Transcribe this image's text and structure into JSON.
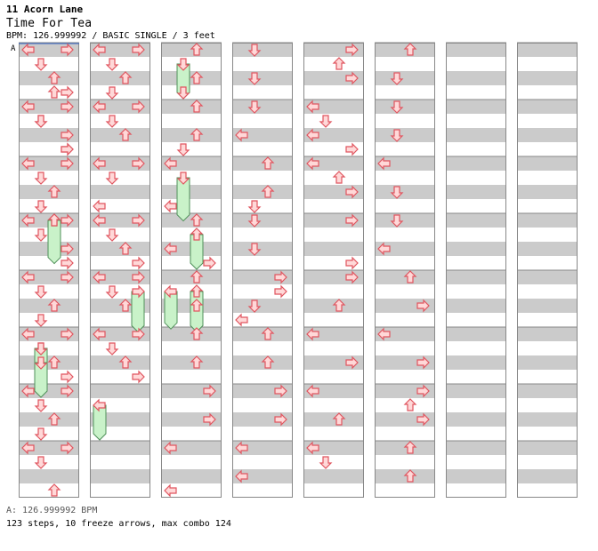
{
  "header": {
    "artist": "11 Acorn Lane",
    "title": "Time For Tea",
    "info": "BPM: 126.999992 / BASIC SINGLE / 3 feet",
    "bpm_marker": "A"
  },
  "footer": {
    "bpm_line": "A: 126.999992 BPM",
    "stats": "123 steps, 10 freeze arrows, max combo 124"
  },
  "colors": {
    "stripe_gray": "#cbcbcb",
    "arrow_fill": "#ffd8d8",
    "arrow_stroke": "#e0555f",
    "freeze_fill": "#c9f2c9",
    "freeze_stroke": "#50905a",
    "border": "#888888",
    "marker_line": "#3366cc"
  },
  "chart": {
    "columns": 8,
    "measures_per_column": 8,
    "steps": [
      {
        "m": 0,
        "r": 0,
        "d": "L"
      },
      {
        "m": 0,
        "r": 0,
        "d": "R"
      },
      {
        "m": 0,
        "r": 1,
        "d": "D"
      },
      {
        "m": 0,
        "r": 2,
        "d": "U"
      },
      {
        "m": 0,
        "r": 3,
        "d": "U"
      },
      {
        "m": 0,
        "r": 3,
        "d": "R"
      },
      {
        "m": 0,
        "r": 5,
        "d": "D"
      },
      {
        "m": 0,
        "r": 6,
        "d": "R"
      },
      {
        "m": 0,
        "r": 7,
        "d": "R"
      },
      {
        "m": 1,
        "r": 0,
        "d": "L"
      },
      {
        "m": 1,
        "r": 0,
        "d": "R"
      },
      {
        "m": 1,
        "r": 1,
        "d": "D"
      },
      {
        "m": 1,
        "r": 3,
        "d": "R"
      },
      {
        "m": 2,
        "r": 0,
        "d": "L"
      },
      {
        "m": 2,
        "r": 0,
        "d": "R"
      },
      {
        "m": 2,
        "r": 1,
        "d": "D"
      },
      {
        "m": 2,
        "r": 2,
        "d": "U"
      },
      {
        "m": 2,
        "r": 3,
        "d": "D"
      },
      {
        "m": 2,
        "r": 4,
        "d": "U"
      },
      {
        "m": 2,
        "r": 5,
        "d": "D"
      },
      {
        "m": 2,
        "r": 6,
        "d": "R"
      },
      {
        "m": 3,
        "r": 0,
        "d": "L"
      },
      {
        "m": 3,
        "r": 0,
        "d": "R"
      },
      {
        "m": 3,
        "r": 3,
        "d": "R"
      },
      {
        "m": 4,
        "r": 0,
        "d": "L"
      },
      {
        "m": 4,
        "r": 0,
        "d": "R"
      },
      {
        "m": 4,
        "r": 1,
        "d": "D"
      },
      {
        "m": 4,
        "r": 2,
        "d": "U"
      },
      {
        "m": 4,
        "r": 3,
        "d": "D"
      },
      {
        "m": 5,
        "r": 0,
        "d": "L"
      },
      {
        "m": 5,
        "r": 0,
        "d": "R"
      },
      {
        "m": 5,
        "r": 1,
        "d": "D"
      },
      {
        "m": 5,
        "r": 2,
        "d": "U"
      },
      {
        "m": 5,
        "r": 3,
        "d": "R"
      },
      {
        "m": 6,
        "r": 0,
        "d": "L"
      },
      {
        "m": 6,
        "r": 0,
        "d": "R"
      },
      {
        "m": 6,
        "r": 1,
        "d": "D"
      },
      {
        "m": 6,
        "r": 2,
        "d": "U"
      },
      {
        "m": 6,
        "r": 3,
        "d": "D"
      },
      {
        "m": 7,
        "r": 0,
        "d": "L"
      },
      {
        "m": 7,
        "r": 0,
        "d": "R"
      },
      {
        "m": 7,
        "r": 1,
        "d": "D"
      },
      {
        "m": 7,
        "r": 3,
        "d": "U"
      },
      {
        "m": 8,
        "r": 0,
        "d": "L"
      },
      {
        "m": 8,
        "r": 0,
        "d": "R"
      },
      {
        "m": 8,
        "r": 1,
        "d": "D"
      },
      {
        "m": 8,
        "r": 2,
        "d": "U"
      },
      {
        "m": 8,
        "r": 3,
        "d": "D"
      },
      {
        "m": 9,
        "r": 0,
        "d": "L"
      },
      {
        "m": 9,
        "r": 0,
        "d": "R"
      },
      {
        "m": 9,
        "r": 1,
        "d": "D"
      },
      {
        "m": 9,
        "r": 2,
        "d": "U"
      },
      {
        "m": 10,
        "r": 0,
        "d": "L"
      },
      {
        "m": 10,
        "r": 0,
        "d": "R"
      },
      {
        "m": 10,
        "r": 1,
        "d": "D"
      },
      {
        "m": 10,
        "r": 3,
        "d": "L"
      },
      {
        "m": 11,
        "r": 0,
        "d": "L"
      },
      {
        "m": 11,
        "r": 0,
        "d": "R"
      },
      {
        "m": 11,
        "r": 1,
        "d": "D"
      },
      {
        "m": 11,
        "r": 2,
        "d": "U"
      },
      {
        "m": 11,
        "r": 3,
        "d": "R"
      },
      {
        "m": 12,
        "r": 0,
        "d": "L"
      },
      {
        "m": 12,
        "r": 0,
        "d": "R"
      },
      {
        "m": 12,
        "r": 1,
        "d": "D"
      },
      {
        "m": 12,
        "r": 2,
        "d": "U"
      },
      {
        "m": 13,
        "r": 0,
        "d": "L"
      },
      {
        "m": 13,
        "r": 0,
        "d": "R"
      },
      {
        "m": 13,
        "r": 1,
        "d": "D"
      },
      {
        "m": 13,
        "r": 2,
        "d": "U"
      },
      {
        "m": 13,
        "r": 3,
        "d": "R"
      },
      {
        "m": 16,
        "r": 0,
        "d": "U"
      },
      {
        "m": 16,
        "r": 2,
        "d": "U"
      },
      {
        "m": 16,
        "r": 3,
        "d": "D"
      },
      {
        "m": 17,
        "r": 0,
        "d": "U"
      },
      {
        "m": 17,
        "r": 2,
        "d": "U"
      },
      {
        "m": 17,
        "r": 3,
        "d": "D"
      },
      {
        "m": 18,
        "r": 0,
        "d": "L"
      },
      {
        "m": 18,
        "r": 3,
        "d": "L"
      },
      {
        "m": 19,
        "r": 0,
        "d": "U"
      },
      {
        "m": 19,
        "r": 2,
        "d": "L"
      },
      {
        "m": 19,
        "r": 3,
        "d": "R"
      },
      {
        "m": 20,
        "r": 0,
        "d": "U"
      },
      {
        "m": 20,
        "r": 2,
        "d": "U"
      },
      {
        "m": 21,
        "r": 0,
        "d": "U"
      },
      {
        "m": 21,
        "r": 2,
        "d": "U"
      },
      {
        "m": 22,
        "r": 0,
        "d": "R"
      },
      {
        "m": 22,
        "r": 2,
        "d": "R"
      },
      {
        "m": 23,
        "r": 0,
        "d": "L"
      },
      {
        "m": 23,
        "r": 3,
        "d": "L"
      },
      {
        "m": 24,
        "r": 0,
        "d": "D"
      },
      {
        "m": 24,
        "r": 2,
        "d": "D"
      },
      {
        "m": 25,
        "r": 0,
        "d": "D"
      },
      {
        "m": 25,
        "r": 2,
        "d": "L"
      },
      {
        "m": 26,
        "r": 0,
        "d": "U"
      },
      {
        "m": 26,
        "r": 2,
        "d": "U"
      },
      {
        "m": 26,
        "r": 3,
        "d": "D"
      },
      {
        "m": 27,
        "r": 0,
        "d": "D"
      },
      {
        "m": 27,
        "r": 2,
        "d": "D"
      },
      {
        "m": 28,
        "r": 0,
        "d": "R"
      },
      {
        "m": 28,
        "r": 1,
        "d": "R"
      },
      {
        "m": 28,
        "r": 2,
        "d": "D"
      },
      {
        "m": 28,
        "r": 3,
        "d": "L"
      },
      {
        "m": 29,
        "r": 0,
        "d": "U"
      },
      {
        "m": 29,
        "r": 2,
        "d": "U"
      },
      {
        "m": 30,
        "r": 0,
        "d": "R"
      },
      {
        "m": 30,
        "r": 2,
        "d": "R"
      },
      {
        "m": 31,
        "r": 0,
        "d": "L"
      },
      {
        "m": 31,
        "r": 2,
        "d": "L"
      },
      {
        "m": 32,
        "r": 0,
        "d": "R"
      },
      {
        "m": 32,
        "r": 1,
        "d": "U"
      },
      {
        "m": 32,
        "r": 2,
        "d": "R"
      },
      {
        "m": 33,
        "r": 0,
        "d": "L"
      },
      {
        "m": 33,
        "r": 1,
        "d": "D"
      },
      {
        "m": 33,
        "r": 2,
        "d": "L"
      },
      {
        "m": 33,
        "r": 3,
        "d": "R"
      },
      {
        "m": 34,
        "r": 0,
        "d": "L"
      },
      {
        "m": 34,
        "r": 1,
        "d": "U"
      },
      {
        "m": 34,
        "r": 2,
        "d": "R"
      },
      {
        "m": 35,
        "r": 0,
        "d": "R"
      },
      {
        "m": 35,
        "r": 3,
        "d": "R"
      },
      {
        "m": 36,
        "r": 0,
        "d": "R"
      },
      {
        "m": 36,
        "r": 2,
        "d": "U"
      },
      {
        "m": 37,
        "r": 0,
        "d": "L"
      },
      {
        "m": 37,
        "r": 2,
        "d": "R"
      },
      {
        "m": 38,
        "r": 0,
        "d": "L"
      },
      {
        "m": 38,
        "r": 2,
        "d": "U"
      },
      {
        "m": 39,
        "r": 0,
        "d": "L"
      },
      {
        "m": 39,
        "r": 1,
        "d": "D"
      },
      {
        "m": 40,
        "r": 0,
        "d": "U"
      },
      {
        "m": 40,
        "r": 2,
        "d": "D"
      },
      {
        "m": 41,
        "r": 0,
        "d": "D"
      },
      {
        "m": 41,
        "r": 2,
        "d": "D"
      },
      {
        "m": 42,
        "r": 0,
        "d": "L"
      },
      {
        "m": 42,
        "r": 2,
        "d": "D"
      },
      {
        "m": 43,
        "r": 0,
        "d": "D"
      },
      {
        "m": 43,
        "r": 2,
        "d": "L"
      },
      {
        "m": 44,
        "r": 0,
        "d": "U"
      },
      {
        "m": 44,
        "r": 2,
        "d": "R"
      },
      {
        "m": 45,
        "r": 0,
        "d": "L"
      },
      {
        "m": 45,
        "r": 2,
        "d": "R"
      },
      {
        "m": 46,
        "r": 0,
        "d": "R"
      },
      {
        "m": 46,
        "r": 1,
        "d": "U"
      },
      {
        "m": 46,
        "r": 2,
        "d": "R"
      },
      {
        "m": 47,
        "r": 0,
        "d": "U"
      },
      {
        "m": 47,
        "r": 2,
        "d": "U"
      }
    ],
    "freezes": [
      {
        "m": 3,
        "r": 0,
        "d": "U",
        "len": 1.3
      },
      {
        "m": 5,
        "r": 1,
        "d": "D",
        "len": 1
      },
      {
        "m": 5,
        "r": 2,
        "d": "D",
        "len": 1
      },
      {
        "m": 12,
        "r": 1,
        "d": "R",
        "len": 1.2
      },
      {
        "m": 14,
        "r": 1,
        "d": "L",
        "len": 1
      },
      {
        "m": 16,
        "r": 1,
        "d": "D",
        "len": 1
      },
      {
        "m": 18,
        "r": 1,
        "d": "D",
        "len": 1.3
      },
      {
        "m": 20,
        "r": 1,
        "d": "U",
        "len": 1.2
      },
      {
        "m": 20,
        "r": 1,
        "d": "L",
        "len": 1.1
      },
      {
        "m": 19,
        "r": 1,
        "d": "U",
        "len": 1
      }
    ]
  }
}
